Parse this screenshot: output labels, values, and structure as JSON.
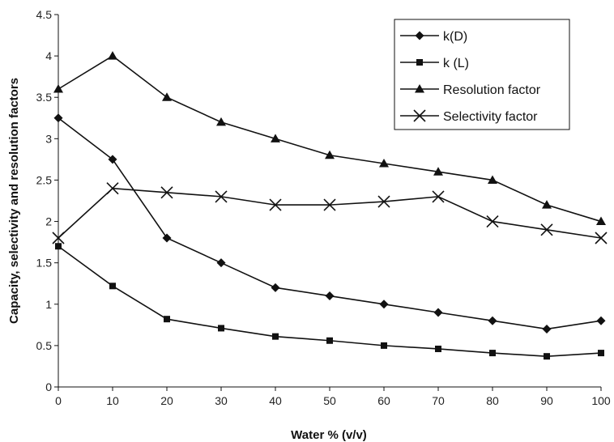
{
  "chart_data": {
    "type": "line",
    "title": "",
    "xlabel": "Water % (v/v)",
    "ylabel": "Capacity, selectivity and resolution factors",
    "x": [
      0,
      10,
      20,
      30,
      40,
      50,
      60,
      70,
      80,
      90,
      100
    ],
    "xlim": [
      0,
      100
    ],
    "ylim": [
      0,
      4.5
    ],
    "x_ticks": [
      "0",
      "10",
      "20",
      "30",
      "40",
      "50",
      "60",
      "70",
      "80",
      "90",
      "100"
    ],
    "y_ticks": [
      "0",
      "0.5",
      "1",
      "1.5",
      "2",
      "2.5",
      "3",
      "3.5",
      "4",
      "4.5"
    ],
    "grid": false,
    "legend_position": "top-right",
    "series": [
      {
        "name": "k(D)",
        "marker": "diamond",
        "values": [
          3.25,
          2.75,
          1.8,
          1.5,
          1.2,
          1.1,
          1.0,
          0.9,
          0.8,
          0.7,
          0.8
        ]
      },
      {
        "name": "k (L)",
        "marker": "square",
        "values": [
          1.7,
          1.22,
          0.82,
          0.71,
          0.61,
          0.56,
          0.5,
          0.46,
          0.41,
          0.37,
          0.41
        ]
      },
      {
        "name": "Resolution factor",
        "marker": "triangle",
        "values": [
          3.6,
          4.0,
          3.5,
          3.2,
          3.0,
          2.8,
          2.7,
          2.6,
          2.5,
          2.2,
          2.0
        ]
      },
      {
        "name": "Selectivity factor",
        "marker": "x",
        "values": [
          1.8,
          2.4,
          2.35,
          2.3,
          2.2,
          2.2,
          2.24,
          2.3,
          2.0,
          1.9,
          1.8
        ]
      }
    ],
    "line_color": "#111111"
  }
}
